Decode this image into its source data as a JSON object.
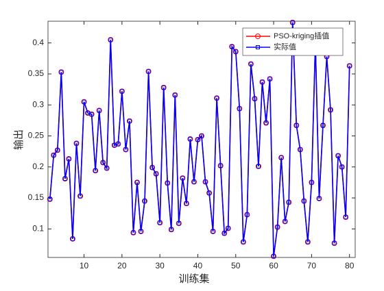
{
  "chart_data": {
    "type": "line",
    "xlabel": "训练集",
    "ylabel": "输出",
    "x": [
      1,
      2,
      3,
      4,
      5,
      6,
      7,
      8,
      9,
      10,
      11,
      12,
      13,
      14,
      15,
      16,
      17,
      18,
      19,
      20,
      21,
      22,
      23,
      24,
      25,
      26,
      27,
      28,
      29,
      30,
      31,
      32,
      33,
      34,
      35,
      36,
      37,
      38,
      39,
      40,
      41,
      42,
      43,
      44,
      45,
      46,
      47,
      48,
      49,
      50,
      51,
      52,
      53,
      54,
      55,
      56,
      57,
      58,
      59,
      60,
      61,
      62,
      63,
      64,
      65,
      66,
      67,
      68,
      69,
      70,
      71,
      72,
      73,
      74,
      75,
      76,
      77,
      78,
      79,
      80
    ],
    "series": [
      {
        "name": "PSO-kriging插值",
        "color": "#ff0000",
        "marker": "circle",
        "values": [
          0.148,
          0.219,
          0.227,
          0.353,
          0.181,
          0.213,
          0.084,
          0.238,
          0.153,
          0.305,
          0.287,
          0.285,
          0.194,
          0.291,
          0.207,
          0.198,
          0.405,
          0.235,
          0.237,
          0.322,
          0.228,
          0.274,
          0.094,
          0.175,
          0.096,
          0.145,
          0.354,
          0.199,
          0.189,
          0.11,
          0.328,
          0.174,
          0.099,
          0.316,
          0.109,
          0.182,
          0.141,
          0.245,
          0.176,
          0.244,
          0.25,
          0.176,
          0.158,
          0.096,
          0.311,
          0.202,
          0.093,
          0.101,
          0.394,
          0.386,
          0.294,
          0.079,
          0.123,
          0.366,
          0.31,
          0.201,
          0.337,
          0.271,
          0.342,
          0.056,
          0.103,
          0.215,
          0.112,
          0.143,
          0.433,
          0.267,
          0.228,
          0.145,
          0.079,
          0.175,
          0.401,
          0.149,
          0.267,
          0.378,
          0.292,
          0.077,
          0.218,
          0.2,
          0.119,
          0.363
        ]
      },
      {
        "name": "实际值",
        "color": "#0000ff",
        "marker": "square",
        "values": [
          0.148,
          0.219,
          0.227,
          0.353,
          0.181,
          0.213,
          0.084,
          0.238,
          0.153,
          0.305,
          0.287,
          0.285,
          0.194,
          0.291,
          0.207,
          0.198,
          0.405,
          0.235,
          0.237,
          0.322,
          0.228,
          0.274,
          0.094,
          0.175,
          0.096,
          0.145,
          0.354,
          0.199,
          0.189,
          0.11,
          0.328,
          0.174,
          0.099,
          0.316,
          0.109,
          0.182,
          0.141,
          0.245,
          0.176,
          0.244,
          0.25,
          0.176,
          0.158,
          0.096,
          0.311,
          0.202,
          0.093,
          0.101,
          0.394,
          0.386,
          0.294,
          0.079,
          0.123,
          0.366,
          0.31,
          0.201,
          0.337,
          0.271,
          0.342,
          0.056,
          0.103,
          0.215,
          0.112,
          0.143,
          0.433,
          0.267,
          0.228,
          0.145,
          0.079,
          0.175,
          0.401,
          0.149,
          0.267,
          0.378,
          0.292,
          0.077,
          0.218,
          0.2,
          0.119,
          0.363
        ]
      }
    ],
    "xlim": [
      0.5,
      81.5
    ],
    "xticks": [
      10,
      20,
      30,
      40,
      50,
      60,
      70,
      80
    ],
    "ylim": [
      0.054,
      0.435
    ],
    "yticks": [
      0.1,
      0.15,
      0.2,
      0.25,
      0.3,
      0.35,
      0.4
    ],
    "legend": "northeast"
  }
}
